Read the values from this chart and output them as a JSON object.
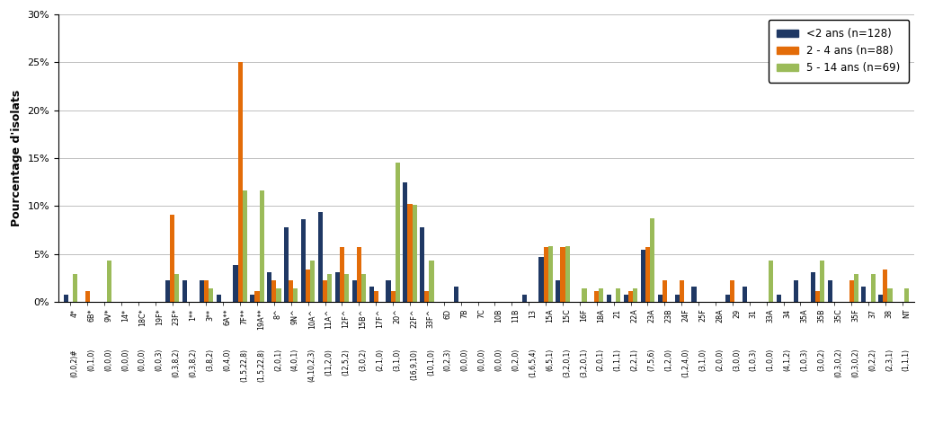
{
  "categories": [
    "4*",
    "6B*",
    "9V*",
    "14*",
    "18C*",
    "19F*",
    "23F*",
    "1**",
    "3**",
    "6A**",
    "7F**",
    "19A**",
    "8^",
    "9N^",
    "10A^",
    "11A^",
    "12F^",
    "15B^",
    "17F^",
    "20^",
    "22F^",
    "33F^",
    "6D",
    "7B",
    "7C",
    "10B",
    "11B",
    "13",
    "15A",
    "15C",
    "16F",
    "18A",
    "21",
    "22A",
    "23A",
    "23B",
    "24F",
    "25F",
    "28A",
    "29",
    "31",
    "33A",
    "34",
    "35A",
    "35B",
    "35C",
    "35F",
    "37",
    "38",
    "NT"
  ],
  "labels_line2": [
    "(0,0,2)#",
    "(0,1,0)",
    "(0,0,0)",
    "(0,0,0)",
    "(0,0,0)",
    "(0,0,3)",
    "(0,3,8,2)",
    "(0,3,8,2)",
    "(3,8,2)",
    "(0,4,0)",
    "(1,5,22,8)",
    "(1,5,22,8)",
    "(2,0,1)",
    "(4,0,1)",
    "(4,10,2,3)",
    "(11,2,0)",
    "(12,5,2)",
    "(3,0,2)",
    "(2,1,0)",
    "(3,1,0)",
    "(16,9,10)",
    "(10,1,0)",
    "(0,2,3)",
    "(0,0,0)",
    "(0,0,0)",
    "(0,0,0)",
    "(0,2,0)",
    "(1,6,5,4)",
    "(6,5,1)",
    "(3,2,0,1)",
    "(3,2,0,1)",
    "(2,0,1)",
    "(1,1,1)",
    "(2,2,1)",
    "(7,5,6)",
    "(1,2,0)",
    "(1,2,4,0)",
    "(3,1,0)",
    "(2,0,0)",
    "(3,0,0)",
    "(1,0,3)",
    "(1,0,0)",
    "(4,1,2)",
    "(1,0,3)",
    "(3,0,2)",
    "(0,3,0,2)",
    "(0,3,0,2)",
    "(0,2,2)",
    "(2,3,1)",
    "(1,1,1)"
  ],
  "series": {
    "<2 ans (n=128)": [
      0.8,
      0,
      0,
      0,
      0,
      0,
      2.3,
      2.3,
      2.3,
      0.8,
      3.9,
      0.8,
      3.1,
      7.8,
      8.6,
      9.4,
      3.1,
      2.3,
      1.6,
      2.3,
      12.5,
      7.8,
      0,
      1.6,
      0,
      0,
      0,
      0.8,
      4.7,
      2.3,
      0,
      0,
      0.8,
      0.8,
      5.5,
      0.8,
      0.8,
      1.6,
      0,
      0.8,
      1.6,
      0,
      0.8,
      2.3,
      3.1,
      2.3,
      0,
      1.6,
      0.8,
      0
    ],
    "2 - 4 ans (n=88)": [
      0,
      1.1,
      0,
      0,
      0,
      0,
      9.1,
      0,
      2.3,
      0,
      25.0,
      1.1,
      2.3,
      2.3,
      3.4,
      2.3,
      5.7,
      5.7,
      1.1,
      1.1,
      10.2,
      1.1,
      0,
      0,
      0,
      0,
      0,
      0,
      5.7,
      5.7,
      0,
      1.1,
      0,
      1.1,
      5.7,
      2.3,
      2.3,
      0,
      0,
      2.3,
      0,
      0,
      0,
      0,
      1.1,
      0,
      2.3,
      0,
      3.4,
      0
    ],
    "5 - 14 ans (n=69)": [
      2.9,
      0,
      4.3,
      0,
      0,
      0,
      2.9,
      0,
      1.4,
      0,
      11.6,
      11.6,
      1.4,
      1.4,
      4.3,
      2.9,
      2.9,
      2.9,
      0,
      14.5,
      10.1,
      4.3,
      0,
      0,
      0,
      0,
      0,
      0,
      5.8,
      5.8,
      1.4,
      1.4,
      1.4,
      1.4,
      8.7,
      0,
      0,
      0,
      0,
      0,
      0,
      4.3,
      0,
      0,
      4.3,
      0,
      2.9,
      2.9,
      1.4,
      1.4
    ]
  },
  "colors": {
    "<2 ans (n=128)": "#1F3864",
    "2 - 4 ans (n=88)": "#E36C09",
    "5 - 14 ans (n=69)": "#9BBB59"
  },
  "ylabel": "Pourcentage d'isolats",
  "ylim": [
    0,
    30
  ],
  "yticks": [
    0,
    5,
    10,
    15,
    20,
    25,
    30
  ],
  "ytick_labels": [
    "0%",
    "5%",
    "10%",
    "15%",
    "20%",
    "25%",
    "30%"
  ]
}
